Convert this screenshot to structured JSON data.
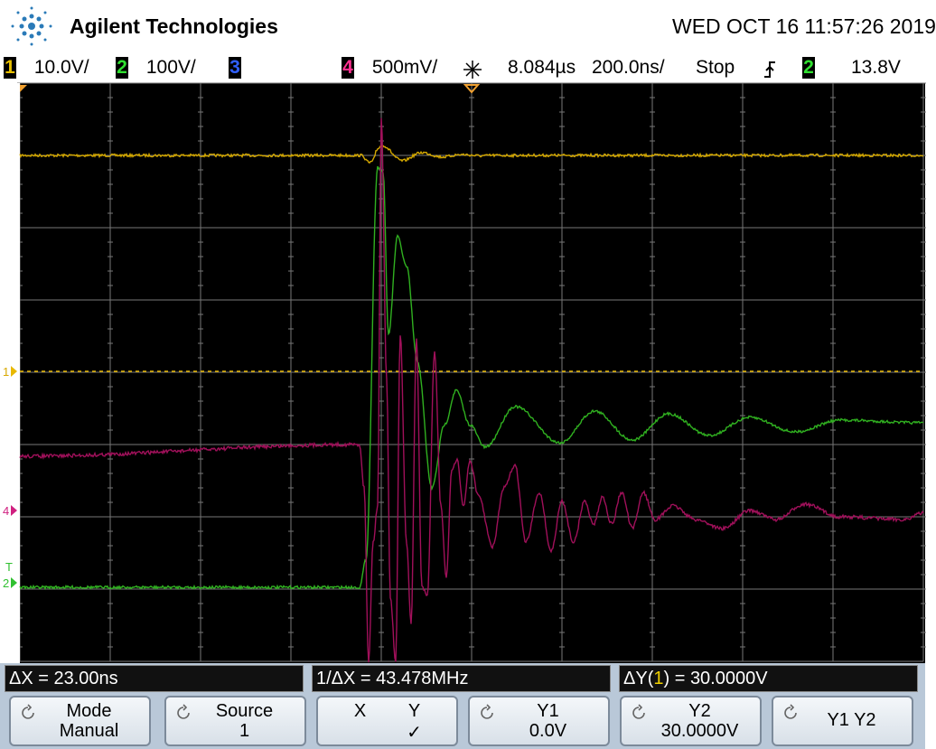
{
  "header": {
    "brand": "Agilent Technologies",
    "datetime": "WED OCT 16 11:57:26 2019"
  },
  "channels": [
    {
      "number": "1",
      "scale": "10.0V/"
    },
    {
      "number": "2",
      "scale": "100V/"
    },
    {
      "number": "3"
    },
    {
      "number": "4",
      "scale": "500mV/"
    }
  ],
  "trigger": {
    "delay": "8.084µs",
    "timebase": "200.0ns/",
    "status": "Stop",
    "source": "2",
    "level": "13.8V"
  },
  "markers": {
    "ch1": "1",
    "ch4": "4",
    "trigger": "T",
    "ch2": "2"
  },
  "measurements": {
    "delta_x": "ΔX = 23.00ns",
    "inverse_delta_x": "1/ΔX = 43.478MHz",
    "delta_y_prefix": "ΔY(",
    "delta_y_source": "1",
    "delta_y_suffix": ") = 30.0000V"
  },
  "softkeys": [
    {
      "lines": [
        "Mode",
        "Manual"
      ]
    },
    {
      "lines": [
        "Source",
        "1"
      ]
    },
    {
      "lines": [
        "X",
        "Y",
        "✓"
      ]
    },
    {
      "lines": [
        "Y1",
        "0.0V"
      ]
    },
    {
      "lines": [
        "Y2",
        "30.0000V"
      ]
    },
    {
      "lines": [
        "Y1 Y2"
      ]
    }
  ]
}
